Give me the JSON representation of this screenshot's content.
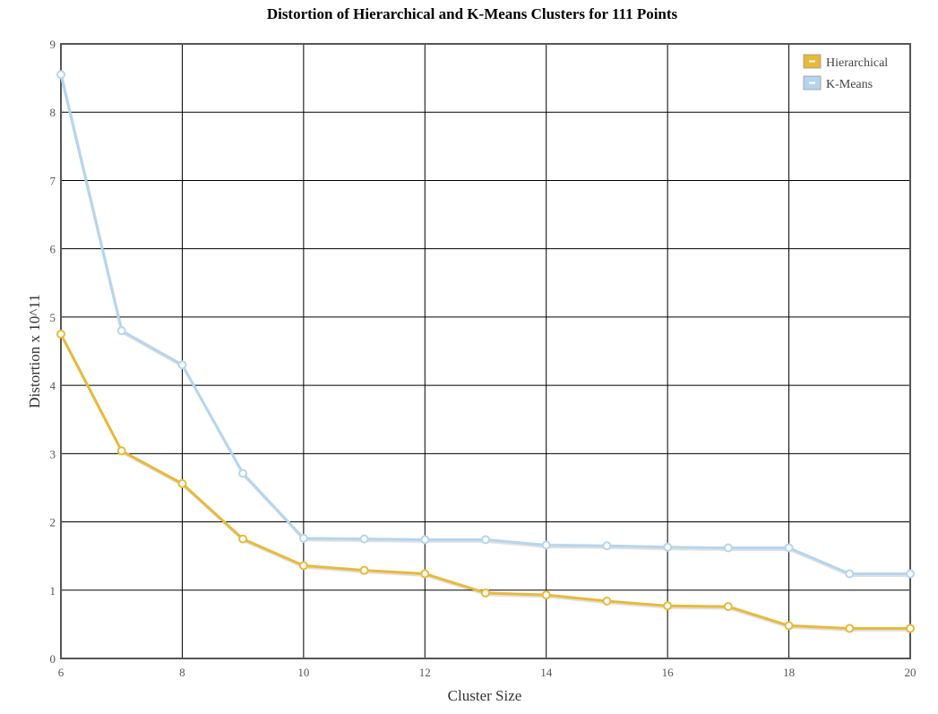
{
  "chart_data": {
    "type": "line",
    "title": "Distortion of Hierarchical and K-Means Clusters for 111 Points",
    "xlabel": "Cluster Size",
    "ylabel": "Distortion x 10^11",
    "xlim": [
      6,
      20
    ],
    "ylim": [
      0,
      9
    ],
    "x_ticks": [
      6,
      8,
      10,
      12,
      14,
      16,
      18,
      20
    ],
    "y_ticks": [
      0,
      1,
      2,
      3,
      4,
      5,
      6,
      7,
      8,
      9
    ],
    "grid": true,
    "legend_position": "top-right",
    "x": [
      6,
      7,
      8,
      9,
      10,
      11,
      12,
      13,
      14,
      15,
      16,
      17,
      18,
      19,
      20
    ],
    "series": [
      {
        "name": "Hierarchical",
        "color": "#e8b93a",
        "values": [
          4.75,
          3.04,
          2.56,
          1.75,
          1.36,
          1.29,
          1.24,
          0.96,
          0.93,
          0.84,
          0.77,
          0.76,
          0.48,
          0.44,
          0.44
        ]
      },
      {
        "name": "K-Means",
        "color": "#b5d5ee",
        "values": [
          8.55,
          4.8,
          4.3,
          2.71,
          1.76,
          1.75,
          1.74,
          1.74,
          1.66,
          1.65,
          1.63,
          1.62,
          1.62,
          1.24,
          1.24
        ]
      }
    ]
  }
}
